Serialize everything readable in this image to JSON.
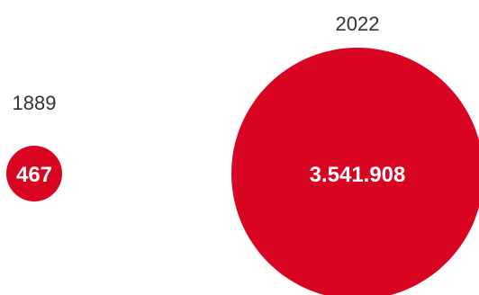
{
  "chart_data": {
    "type": "bubble",
    "title": "",
    "color": "#d90421",
    "points": [
      {
        "year": "1889",
        "value": 467,
        "value_label": "467"
      },
      {
        "year": "2022",
        "value": 3541908,
        "value_label": "3.541.908"
      }
    ]
  }
}
